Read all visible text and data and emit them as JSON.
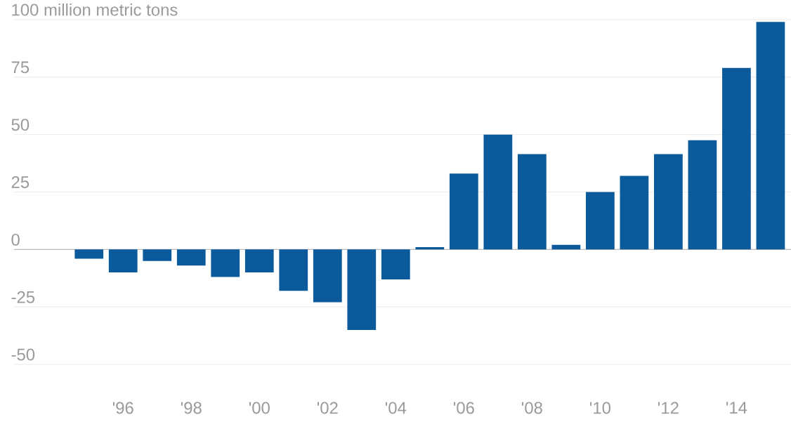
{
  "chart_data": {
    "type": "bar",
    "categories": [
      null,
      "'96",
      null,
      "'98",
      null,
      "'00",
      null,
      "'02",
      null,
      "'04",
      null,
      "'06",
      null,
      "'08",
      null,
      "'10",
      null,
      "'12",
      null,
      "'14",
      null
    ],
    "values": [
      -4,
      -10,
      -5,
      -7,
      -12,
      -10,
      -18,
      -23,
      -35,
      -13,
      1,
      33,
      50,
      41.5,
      2,
      25,
      32,
      41.5,
      47.5,
      79,
      99
    ],
    "color": "#0b5a9c",
    "ylim": [
      -50,
      100
    ],
    "yticks": [
      -50,
      -25,
      0,
      25,
      50,
      75,
      {
        "value": 100,
        "label": "100 million metric tons"
      }
    ],
    "grid": "y"
  }
}
